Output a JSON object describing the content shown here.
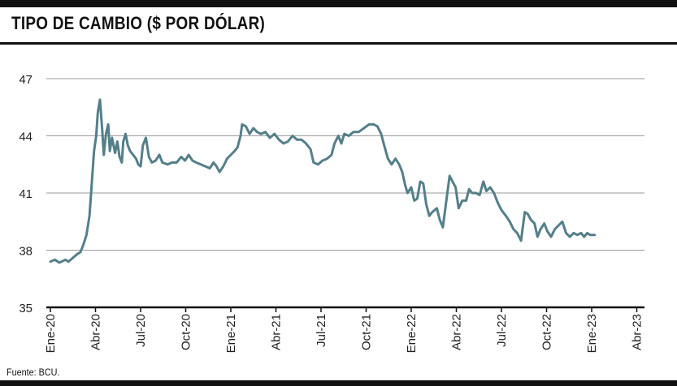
{
  "title": "TIPO DE CAMBIO ($ POR DÓLAR)",
  "source": "Fuente: BCU.",
  "colors": {
    "line": "#547f8a",
    "grid": "#9a9a9a",
    "axis": "#111111",
    "rule": "#111111"
  },
  "chart_data": {
    "type": "line",
    "title": "TIPO DE CAMBIO ($ POR DÓLAR)",
    "xlabel": "",
    "ylabel": "",
    "ylim": [
      35,
      47
    ],
    "yticks": [
      35,
      38,
      41,
      44,
      47
    ],
    "grid": true,
    "x_tick_labels": [
      "Ene-20",
      "Abr-20",
      "Jul-20",
      "Oct-20",
      "Ene-21",
      "Abr-21",
      "Jul-21",
      "Oct-21",
      "Ene-22",
      "Abr-22",
      "Jul-22",
      "Oct-22",
      "Ene-23",
      "Abr-23"
    ],
    "x_range_months": [
      0,
      41
    ],
    "series": [
      {
        "name": "Tipo de cambio",
        "points": [
          [
            0.0,
            37.4
          ],
          [
            0.3,
            37.5
          ],
          [
            0.6,
            37.35
          ],
          [
            1.0,
            37.5
          ],
          [
            1.2,
            37.4
          ],
          [
            1.5,
            37.6
          ],
          [
            1.8,
            37.8
          ],
          [
            2.0,
            37.9
          ],
          [
            2.2,
            38.3
          ],
          [
            2.4,
            38.8
          ],
          [
            2.6,
            39.8
          ],
          [
            2.75,
            41.5
          ],
          [
            2.9,
            43.2
          ],
          [
            3.05,
            44.0
          ],
          [
            3.15,
            45.2
          ],
          [
            3.3,
            45.9
          ],
          [
            3.45,
            44.3
          ],
          [
            3.55,
            43.0
          ],
          [
            3.7,
            44.1
          ],
          [
            3.85,
            44.6
          ],
          [
            3.95,
            43.2
          ],
          [
            4.1,
            43.9
          ],
          [
            4.3,
            43.1
          ],
          [
            4.45,
            43.7
          ],
          [
            4.6,
            42.9
          ],
          [
            4.75,
            42.6
          ],
          [
            4.85,
            43.7
          ],
          [
            5.0,
            44.1
          ],
          [
            5.15,
            43.5
          ],
          [
            5.3,
            43.2
          ],
          [
            5.5,
            43.0
          ],
          [
            5.7,
            42.8
          ],
          [
            5.85,
            42.5
          ],
          [
            6.0,
            42.4
          ],
          [
            6.15,
            43.5
          ],
          [
            6.35,
            43.9
          ],
          [
            6.55,
            42.9
          ],
          [
            6.75,
            42.6
          ],
          [
            7.0,
            42.7
          ],
          [
            7.25,
            43.0
          ],
          [
            7.45,
            42.6
          ],
          [
            7.8,
            42.5
          ],
          [
            8.1,
            42.6
          ],
          [
            8.4,
            42.6
          ],
          [
            8.7,
            42.9
          ],
          [
            8.95,
            42.7
          ],
          [
            9.2,
            43.0
          ],
          [
            9.45,
            42.7
          ],
          [
            9.7,
            42.6
          ],
          [
            10.0,
            42.5
          ],
          [
            10.3,
            42.4
          ],
          [
            10.6,
            42.3
          ],
          [
            10.85,
            42.6
          ],
          [
            11.05,
            42.4
          ],
          [
            11.25,
            42.1
          ],
          [
            11.5,
            42.4
          ],
          [
            11.75,
            42.8
          ],
          [
            12.0,
            43.0
          ],
          [
            12.25,
            43.2
          ],
          [
            12.45,
            43.4
          ],
          [
            12.65,
            44.0
          ],
          [
            12.75,
            44.6
          ],
          [
            13.0,
            44.5
          ],
          [
            13.25,
            44.1
          ],
          [
            13.5,
            44.4
          ],
          [
            13.75,
            44.2
          ],
          [
            14.0,
            44.1
          ],
          [
            14.3,
            44.2
          ],
          [
            14.6,
            43.9
          ],
          [
            14.9,
            44.1
          ],
          [
            15.2,
            43.8
          ],
          [
            15.5,
            43.6
          ],
          [
            15.8,
            43.7
          ],
          [
            16.1,
            44.0
          ],
          [
            16.4,
            43.8
          ],
          [
            16.7,
            43.8
          ],
          [
            17.0,
            43.6
          ],
          [
            17.3,
            43.3
          ],
          [
            17.5,
            42.6
          ],
          [
            17.8,
            42.5
          ],
          [
            18.1,
            42.7
          ],
          [
            18.4,
            42.8
          ],
          [
            18.7,
            43.0
          ],
          [
            18.9,
            43.6
          ],
          [
            19.15,
            44.0
          ],
          [
            19.35,
            43.6
          ],
          [
            19.55,
            44.1
          ],
          [
            19.85,
            44.0
          ],
          [
            20.15,
            44.2
          ],
          [
            20.5,
            44.2
          ],
          [
            20.85,
            44.4
          ],
          [
            21.2,
            44.6
          ],
          [
            21.5,
            44.6
          ],
          [
            21.75,
            44.5
          ],
          [
            22.0,
            44.1
          ],
          [
            22.2,
            43.5
          ],
          [
            22.45,
            42.8
          ],
          [
            22.7,
            42.5
          ],
          [
            22.95,
            42.8
          ],
          [
            23.2,
            42.5
          ],
          [
            23.4,
            42.1
          ],
          [
            23.6,
            41.4
          ],
          [
            23.75,
            41.0
          ],
          [
            24.0,
            41.3
          ],
          [
            24.2,
            40.6
          ],
          [
            24.4,
            40.7
          ],
          [
            24.6,
            41.6
          ],
          [
            24.8,
            41.5
          ],
          [
            25.0,
            40.4
          ],
          [
            25.2,
            39.8
          ],
          [
            25.4,
            40.0
          ],
          [
            25.7,
            40.2
          ],
          [
            25.9,
            39.6
          ],
          [
            26.1,
            39.2
          ],
          [
            26.35,
            40.7
          ],
          [
            26.55,
            41.9
          ],
          [
            26.75,
            41.6
          ],
          [
            26.95,
            41.3
          ],
          [
            27.15,
            40.2
          ],
          [
            27.4,
            40.6
          ],
          [
            27.65,
            40.6
          ],
          [
            27.85,
            41.2
          ],
          [
            28.05,
            41.0
          ],
          [
            28.3,
            41.0
          ],
          [
            28.55,
            40.9
          ],
          [
            28.8,
            41.6
          ],
          [
            29.0,
            41.1
          ],
          [
            29.25,
            41.3
          ],
          [
            29.5,
            41.0
          ],
          [
            29.75,
            40.5
          ],
          [
            30.0,
            40.1
          ],
          [
            30.3,
            39.8
          ],
          [
            30.55,
            39.5
          ],
          [
            30.8,
            39.1
          ],
          [
            31.05,
            38.9
          ],
          [
            31.3,
            38.5
          ],
          [
            31.55,
            40.0
          ],
          [
            31.75,
            39.9
          ],
          [
            31.95,
            39.6
          ],
          [
            32.2,
            39.4
          ],
          [
            32.4,
            38.7
          ],
          [
            32.6,
            39.1
          ],
          [
            32.85,
            39.4
          ],
          [
            33.05,
            39.0
          ],
          [
            33.3,
            38.7
          ],
          [
            33.55,
            39.1
          ],
          [
            33.8,
            39.3
          ],
          [
            34.05,
            39.5
          ],
          [
            34.3,
            38.9
          ],
          [
            34.55,
            38.7
          ],
          [
            34.8,
            38.9
          ],
          [
            35.05,
            38.8
          ],
          [
            35.3,
            38.9
          ],
          [
            35.5,
            38.7
          ],
          [
            35.7,
            38.9
          ],
          [
            35.9,
            38.8
          ],
          [
            36.2,
            38.8
          ]
        ]
      }
    ]
  }
}
